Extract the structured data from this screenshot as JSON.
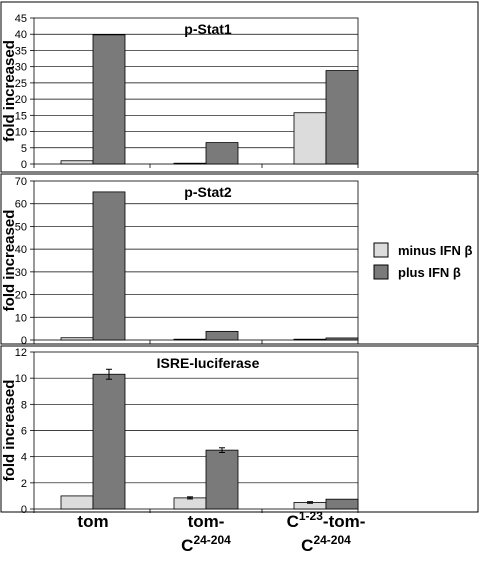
{
  "colors": {
    "minus_fill": "#dcdcdc",
    "plus_fill": "#7a7a7a",
    "frame": "#000000"
  },
  "legend": {
    "minus": {
      "label": "minus IFN β"
    },
    "plus": {
      "label": "plus IFN β"
    }
  },
  "x_categories": [
    {
      "main": "tom",
      "superscript": "",
      "suffix": "",
      "line2_main": "",
      "line2_sup": ""
    },
    {
      "main": "tom-",
      "superscript": "",
      "suffix": "",
      "line2_main": "C",
      "line2_sup": "24-204"
    },
    {
      "main": "C",
      "superscript": "1-23",
      "suffix": "-tom-",
      "line2_main": "C",
      "line2_sup": "24-204"
    }
  ],
  "chart_data": [
    {
      "type": "bar",
      "title": "p-Stat1",
      "ylabel": "fold increased",
      "ylim": [
        0,
        45
      ],
      "yticks": [
        "0",
        "5",
        "10",
        "15",
        "20",
        "25",
        "30",
        "35",
        "40",
        "45"
      ],
      "grid": true,
      "categories": [
        "tom",
        "tom-C24-204",
        "C1-23-tom-C24-204"
      ],
      "series": [
        {
          "name": "minus IFN β",
          "values": [
            1.0,
            0.2,
            15.8
          ]
        },
        {
          "name": "plus IFN β",
          "values": [
            39.8,
            6.6,
            28.8
          ]
        }
      ]
    },
    {
      "type": "bar",
      "title": "p-Stat2",
      "ylabel": "fold increased",
      "ylim": [
        0,
        70
      ],
      "yticks": [
        "0",
        "10",
        "20",
        "30",
        "40",
        "50",
        "60",
        "70"
      ],
      "grid": true,
      "categories": [
        "tom",
        "tom-C24-204",
        "C1-23-tom-C24-204"
      ],
      "series": [
        {
          "name": "minus IFN β",
          "values": [
            1.0,
            0.3,
            0.3
          ]
        },
        {
          "name": "plus IFN β",
          "values": [
            65.2,
            3.8,
            0.9
          ]
        }
      ]
    },
    {
      "type": "bar",
      "title": "ISRE-luciferase",
      "ylabel": "fold increased",
      "ylim": [
        0,
        12
      ],
      "yticks": [
        "0",
        "2",
        "4",
        "6",
        "8",
        "10",
        "12"
      ],
      "grid": true,
      "categories": [
        "tom",
        "tom-C24-204",
        "C1-23-tom-C24-204"
      ],
      "series": [
        {
          "name": "minus IFN β",
          "values": [
            1.0,
            0.85,
            0.5
          ],
          "errors": [
            0,
            0.08,
            0.06
          ]
        },
        {
          "name": "plus IFN β",
          "values": [
            10.3,
            4.5,
            0.75
          ],
          "errors": [
            0.38,
            0.18,
            0
          ]
        }
      ]
    }
  ]
}
